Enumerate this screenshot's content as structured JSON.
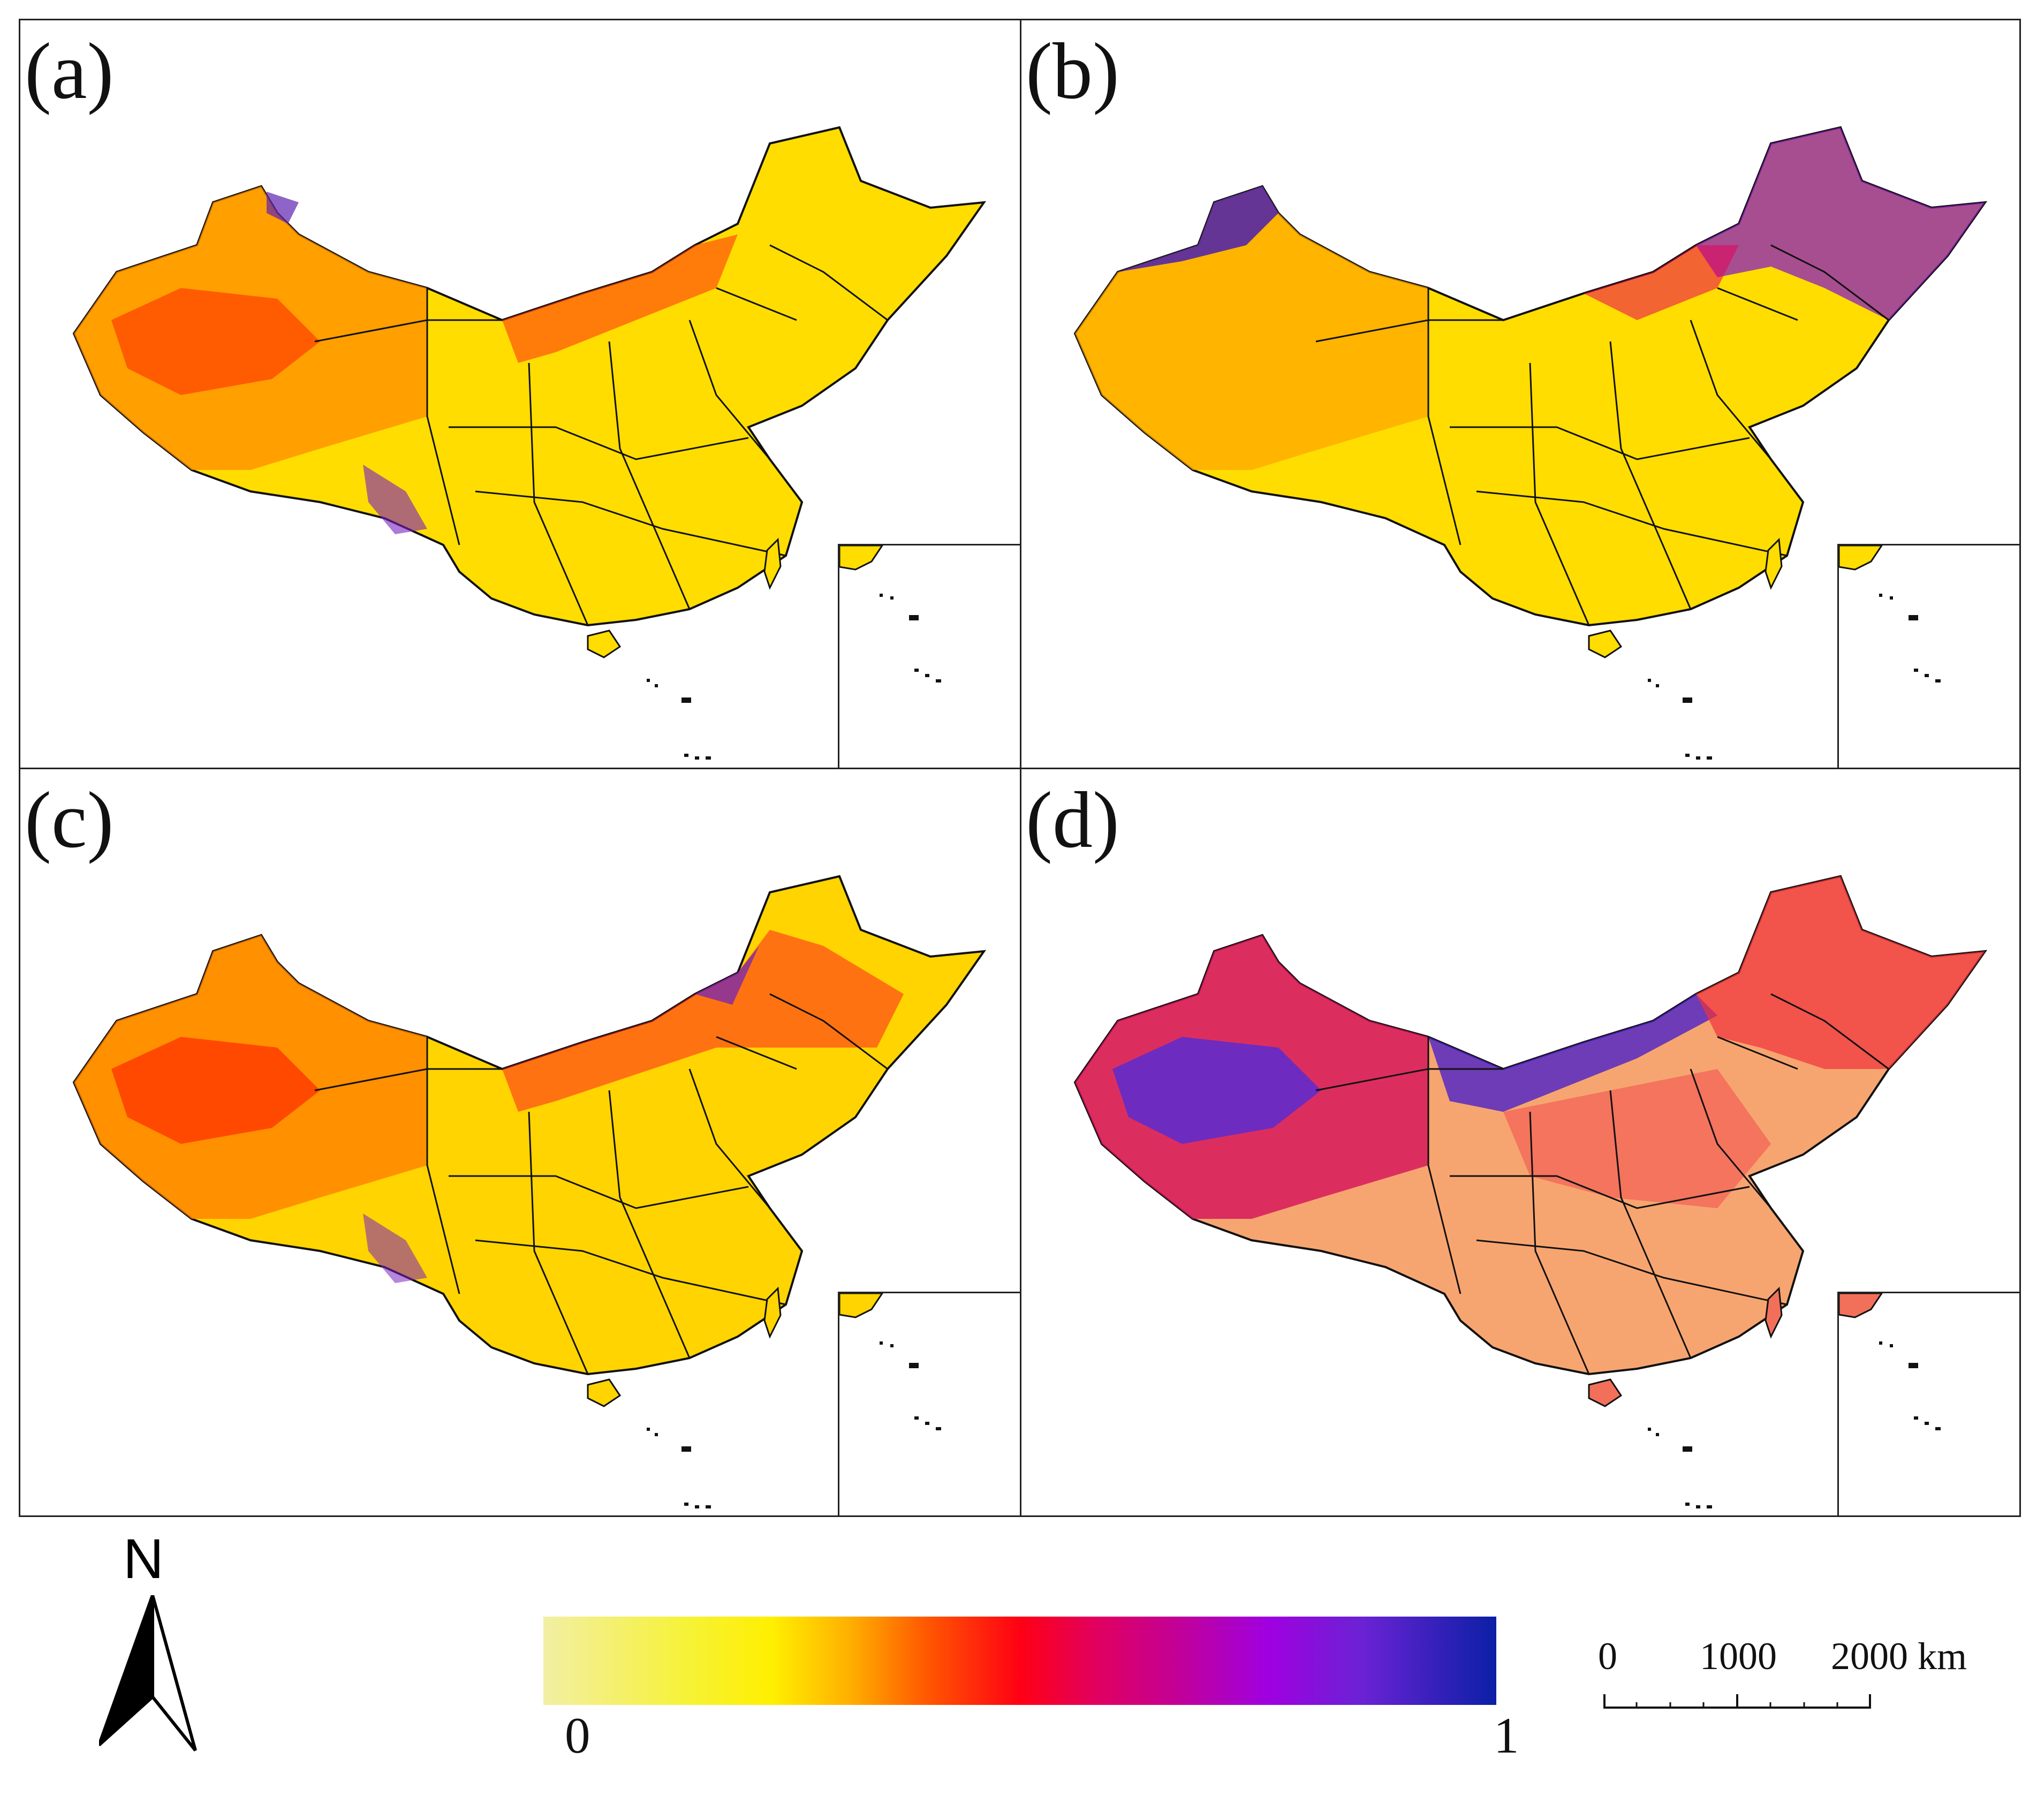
{
  "figure": {
    "panels": [
      {
        "label": "(a)",
        "theme": "a"
      },
      {
        "label": "(b)",
        "theme": "b"
      },
      {
        "label": "(c)",
        "theme": "c"
      },
      {
        "label": "(d)",
        "theme": "d"
      }
    ],
    "north_arrow": {
      "letter": "N"
    },
    "legend": {
      "min_label": "0",
      "max_label": "1",
      "colors": [
        "#f2efa4",
        "#f6f238",
        "#ffef00",
        "#ffb100",
        "#ff5a00",
        "#ff0014",
        "#e1005f",
        "#c40093",
        "#a000e0",
        "#6a22d4",
        "#0b1fa6"
      ]
    },
    "scale_bar": {
      "label_0": "0",
      "label_1000": "1000",
      "label_2000": "2000 km"
    }
  }
}
